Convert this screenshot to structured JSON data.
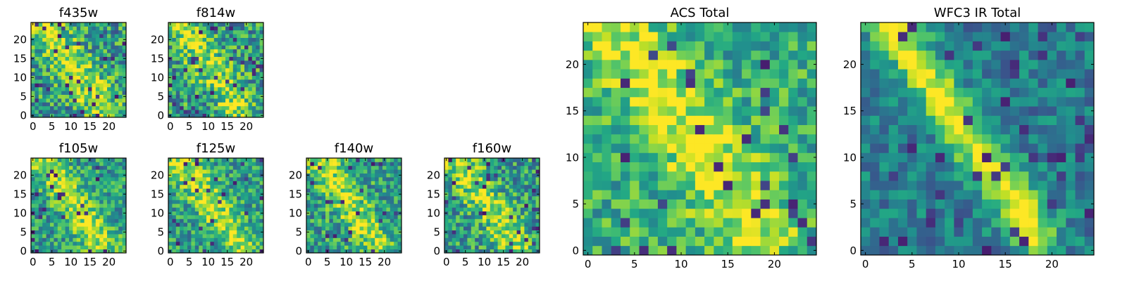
{
  "chart_data": [
    {
      "type": "heatmap",
      "id": "f435w",
      "title": "f435w",
      "grid_size": 25,
      "xlim": [
        -0.5,
        24.5
      ],
      "ylim": [
        -0.5,
        24.5
      ],
      "xticks": [
        0,
        5,
        10,
        15,
        20
      ],
      "yticks": [
        0,
        5,
        10,
        15,
        20
      ],
      "colormap": "viridis",
      "noise_level": 0.55,
      "feature": "diagonal band from upper-left to lower-right, moderate signal",
      "seed": 11
    },
    {
      "type": "heatmap",
      "id": "f814w",
      "title": "f814w",
      "grid_size": 25,
      "xlim": [
        -0.5,
        24.5
      ],
      "ylim": [
        -0.5,
        24.5
      ],
      "xticks": [
        0,
        5,
        10,
        15,
        20
      ],
      "yticks": [
        0,
        5,
        10,
        15,
        20
      ],
      "colormap": "viridis",
      "noise_level": 0.55,
      "feature": "diagonal band from upper-left to lower-right, moderate signal",
      "seed": 23
    },
    {
      "type": "heatmap",
      "id": "f105w",
      "title": "f105w",
      "grid_size": 25,
      "xlim": [
        -0.5,
        24.5
      ],
      "ylim": [
        -0.5,
        24.5
      ],
      "xticks": [
        0,
        5,
        10,
        15,
        20
      ],
      "yticks": [
        0,
        5,
        10,
        15,
        20
      ],
      "colormap": "viridis",
      "noise_level": 0.45,
      "feature": "diagonal band from upper-left to lower-right, smoother signal",
      "seed": 37
    },
    {
      "type": "heatmap",
      "id": "f125w",
      "title": "f125w",
      "grid_size": 25,
      "xlim": [
        -0.5,
        24.5
      ],
      "ylim": [
        -0.5,
        24.5
      ],
      "xticks": [
        0,
        5,
        10,
        15,
        20
      ],
      "yticks": [
        0,
        5,
        10,
        15,
        20
      ],
      "colormap": "viridis",
      "noise_level": 0.45,
      "feature": "diagonal band from upper-left to lower-right, smoother signal",
      "seed": 41
    },
    {
      "type": "heatmap",
      "id": "f140w",
      "title": "f140w",
      "grid_size": 25,
      "xlim": [
        -0.5,
        24.5
      ],
      "ylim": [
        -0.5,
        24.5
      ],
      "xticks": [
        0,
        5,
        10,
        15,
        20
      ],
      "yticks": [
        0,
        5,
        10,
        15,
        20
      ],
      "colormap": "viridis",
      "noise_level": 0.5,
      "feature": "diagonal band from upper-left to lower-right, smoother signal",
      "seed": 53
    },
    {
      "type": "heatmap",
      "id": "f160w",
      "title": "f160w",
      "grid_size": 25,
      "xlim": [
        -0.5,
        24.5
      ],
      "ylim": [
        -0.5,
        24.5
      ],
      "xticks": [
        0,
        5,
        10,
        15,
        20
      ],
      "yticks": [
        0,
        5,
        10,
        15,
        20
      ],
      "colormap": "viridis",
      "noise_level": 0.5,
      "feature": "diagonal band from upper-left to lower-right, smoother signal",
      "seed": 67
    },
    {
      "type": "heatmap",
      "id": "acs-total",
      "title": "ACS Total",
      "grid_size": 25,
      "xlim": [
        -0.5,
        24.5
      ],
      "ylim": [
        -0.5,
        24.5
      ],
      "xticks": [
        0,
        5,
        10,
        15,
        20
      ],
      "yticks": [
        0,
        5,
        10,
        15,
        20
      ],
      "colormap": "viridis",
      "noise_level": 0.4,
      "feature": "broad bright diagonal band, mostly green-yellow",
      "seed": 79
    },
    {
      "type": "heatmap",
      "id": "wfc3-ir-total",
      "title": "WFC3 IR Total",
      "grid_size": 25,
      "xlim": [
        -0.5,
        24.5
      ],
      "ylim": [
        -0.5,
        24.5
      ],
      "xticks": [
        0,
        5,
        10,
        15,
        20
      ],
      "yticks": [
        0,
        5,
        10,
        15,
        20
      ],
      "colormap": "viridis",
      "noise_level": 0.25,
      "feature": "narrow bright diagonal band from (8,17) to (13,9), darker teal background",
      "seed": 97
    }
  ]
}
